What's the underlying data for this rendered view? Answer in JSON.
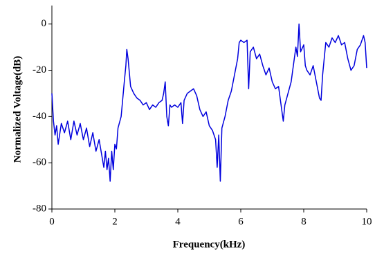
{
  "chart_data": {
    "type": "line",
    "x_label": "Frequency(kHz)",
    "y_label": "Normalized Voltage(dB)",
    "xlim": [
      0,
      10
    ],
    "xticks": [
      0,
      2,
      4,
      6,
      8,
      10
    ],
    "ylim": [
      -80,
      8
    ],
    "yticks": [
      -80,
      -60,
      -40,
      -20,
      0
    ],
    "grid": false,
    "series": [
      {
        "name": null,
        "color": "#0000dd",
        "x": [
          0,
          0.05,
          0.1,
          0.15,
          0.2,
          0.3,
          0.4,
          0.5,
          0.6,
          0.7,
          0.8,
          0.9,
          1.0,
          1.1,
          1.2,
          1.3,
          1.4,
          1.5,
          1.6,
          1.65,
          1.7,
          1.75,
          1.8,
          1.85,
          1.9,
          1.95,
          2.0,
          2.05,
          2.1,
          2.2,
          2.3,
          2.35,
          2.38,
          2.42,
          2.5,
          2.6,
          2.7,
          2.8,
          2.9,
          3.0,
          3.1,
          3.2,
          3.3,
          3.4,
          3.5,
          3.55,
          3.6,
          3.65,
          3.7,
          3.75,
          3.8,
          3.9,
          4.0,
          4.1,
          4.15,
          4.2,
          4.3,
          4.4,
          4.5,
          4.6,
          4.7,
          4.8,
          4.9,
          5.0,
          5.1,
          5.2,
          5.25,
          5.3,
          5.35,
          5.4,
          5.5,
          5.6,
          5.7,
          5.8,
          5.9,
          5.95,
          6.0,
          6.1,
          6.2,
          6.25,
          6.3,
          6.4,
          6.5,
          6.6,
          6.7,
          6.8,
          6.9,
          7.0,
          7.1,
          7.2,
          7.3,
          7.35,
          7.4,
          7.5,
          7.6,
          7.7,
          7.75,
          7.8,
          7.85,
          7.9,
          8.0,
          8.05,
          8.1,
          8.2,
          8.3,
          8.4,
          8.5,
          8.55,
          8.6,
          8.7,
          8.8,
          8.9,
          9.0,
          9.1,
          9.2,
          9.3,
          9.4,
          9.5,
          9.6,
          9.7,
          9.8,
          9.9,
          9.95,
          10.0
        ],
        "values": [
          -30,
          -42,
          -48,
          -44,
          -52,
          -43,
          -47,
          -42,
          -50,
          -42,
          -48,
          -43,
          -50,
          -45,
          -53,
          -47,
          -55,
          -50,
          -58,
          -62,
          -55,
          -63,
          -58,
          -68,
          -55,
          -63,
          -52,
          -54,
          -45,
          -40,
          -25,
          -18,
          -11,
          -15,
          -27,
          -30,
          -32,
          -33,
          -35,
          -34,
          -37,
          -35,
          -36,
          -34,
          -33,
          -30,
          -25,
          -40,
          -44,
          -35,
          -36,
          -35,
          -36,
          -34,
          -43,
          -33,
          -30,
          -29,
          -28,
          -31,
          -37,
          -40,
          -38,
          -44,
          -46,
          -50,
          -62,
          -48,
          -68,
          -45,
          -40,
          -33,
          -29,
          -22,
          -15,
          -8,
          -7,
          -8,
          -7,
          -28,
          -12,
          -10,
          -15,
          -13,
          -18,
          -22,
          -19,
          -25,
          -28,
          -27,
          -37,
          -42,
          -35,
          -30,
          -25,
          -15,
          -10,
          -14,
          0,
          -12,
          -9,
          -18,
          -20,
          -22,
          -18,
          -25,
          -32,
          -33,
          -22,
          -8,
          -10,
          -6,
          -8,
          -5,
          -9,
          -8,
          -15,
          -20,
          -18,
          -11,
          -9,
          -5,
          -8,
          -19
        ]
      }
    ]
  }
}
